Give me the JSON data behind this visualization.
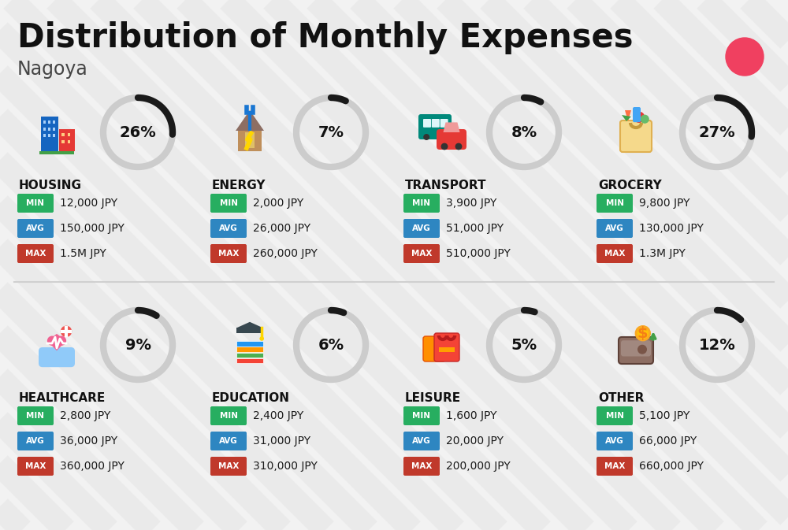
{
  "title": "Distribution of Monthly Expenses",
  "subtitle": "Nagoya",
  "background_color": "#f2f2f2",
  "red_dot_color": "#f04060",
  "categories": [
    {
      "name": "HOUSING",
      "percent": 26,
      "min": "12,000 JPY",
      "avg": "150,000 JPY",
      "max": "1.5M JPY",
      "col": 0,
      "row": 0
    },
    {
      "name": "ENERGY",
      "percent": 7,
      "min": "2,000 JPY",
      "avg": "26,000 JPY",
      "max": "260,000 JPY",
      "col": 1,
      "row": 0
    },
    {
      "name": "TRANSPORT",
      "percent": 8,
      "min": "3,900 JPY",
      "avg": "51,000 JPY",
      "max": "510,000 JPY",
      "col": 2,
      "row": 0
    },
    {
      "name": "GROCERY",
      "percent": 27,
      "min": "9,800 JPY",
      "avg": "130,000 JPY",
      "max": "1.3M JPY",
      "col": 3,
      "row": 0
    },
    {
      "name": "HEALTHCARE",
      "percent": 9,
      "min": "2,800 JPY",
      "avg": "36,000 JPY",
      "max": "360,000 JPY",
      "col": 0,
      "row": 1
    },
    {
      "name": "EDUCATION",
      "percent": 6,
      "min": "2,400 JPY",
      "avg": "31,000 JPY",
      "max": "310,000 JPY",
      "col": 1,
      "row": 1
    },
    {
      "name": "LEISURE",
      "percent": 5,
      "min": "1,600 JPY",
      "avg": "20,000 JPY",
      "max": "200,000 JPY",
      "col": 2,
      "row": 1
    },
    {
      "name": "OTHER",
      "percent": 12,
      "min": "5,100 JPY",
      "avg": "66,000 JPY",
      "max": "660,000 JPY",
      "col": 3,
      "row": 1
    }
  ],
  "color_min": "#27ae60",
  "color_avg": "#2e86c1",
  "color_max": "#c0392b",
  "label_color": "#ffffff",
  "value_color": "#1a1a1a",
  "cat_name_color": "#111111",
  "percent_color": "#111111",
  "arc_filled_color": "#1a1a1a",
  "arc_bg_color": "#cccccc",
  "stripe_color": "#e8e8e8",
  "divider_color": "#d0d0d0"
}
